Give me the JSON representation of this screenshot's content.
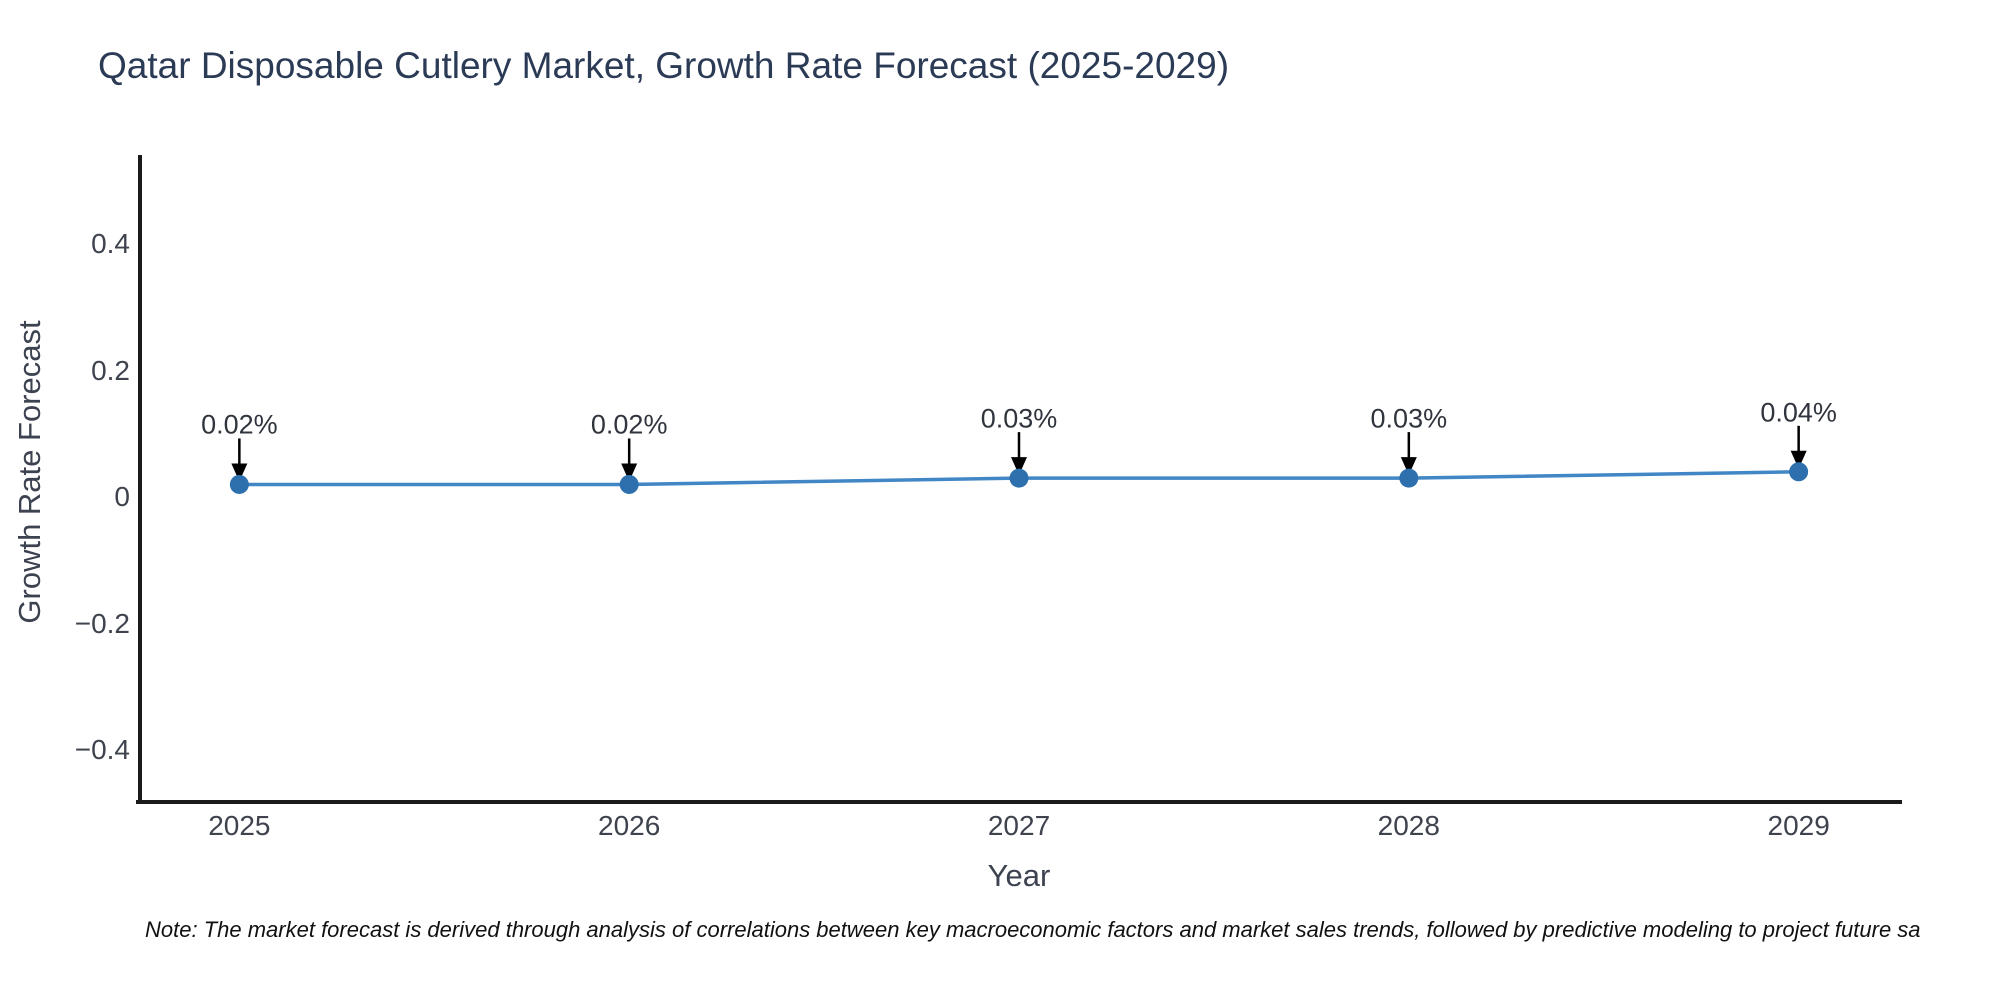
{
  "chart": {
    "title": "Qatar Disposable Cutlery Market, Growth Rate Forecast (2025-2029)",
    "x_axis": {
      "label": "Year",
      "tick_labels": [
        "2025",
        "2026",
        "2027",
        "2028",
        "2029"
      ]
    },
    "y_axis": {
      "label": "Growth Rate Forecast",
      "tick_labels": [
        "0.4",
        "0.2",
        "0",
        "−0.2",
        "−0.4"
      ],
      "tick_values": [
        0.4,
        0.2,
        0,
        -0.2,
        -0.4
      ]
    },
    "note": "Note: The market forecast is derived through analysis of correlations between key macroeconomic factors and market sales trends, followed by predictive modeling to project future sa"
  },
  "chart_data": {
    "type": "line",
    "title": "Qatar Disposable Cutlery Market, Growth Rate Forecast (2025-2029)",
    "xlabel": "Year",
    "ylabel": "Growth Rate Forecast",
    "x": [
      2025,
      2026,
      2027,
      2028,
      2029
    ],
    "y": [
      0.02,
      0.02,
      0.03,
      0.03,
      0.04
    ],
    "unit": "%",
    "point_labels": [
      "0.02%",
      "0.02%",
      "0.03%",
      "0.03%",
      "0.04%"
    ],
    "annotation_arrows": "down-to-point",
    "xlim": [
      2024.74,
      2029.26
    ],
    "ylim": [
      -0.479,
      0.541
    ],
    "grid": false,
    "legend": "none",
    "colors": {
      "line": "#4186c5",
      "marker": "#2d70ad",
      "arrow": "#000000",
      "axis": "#1a1a1a",
      "title_text": "#2b3a55",
      "axis_title_text": "#3c4250",
      "tick_text": "#3e434e",
      "annotation_text": "#30343d",
      "note_text": "#111111"
    }
  }
}
